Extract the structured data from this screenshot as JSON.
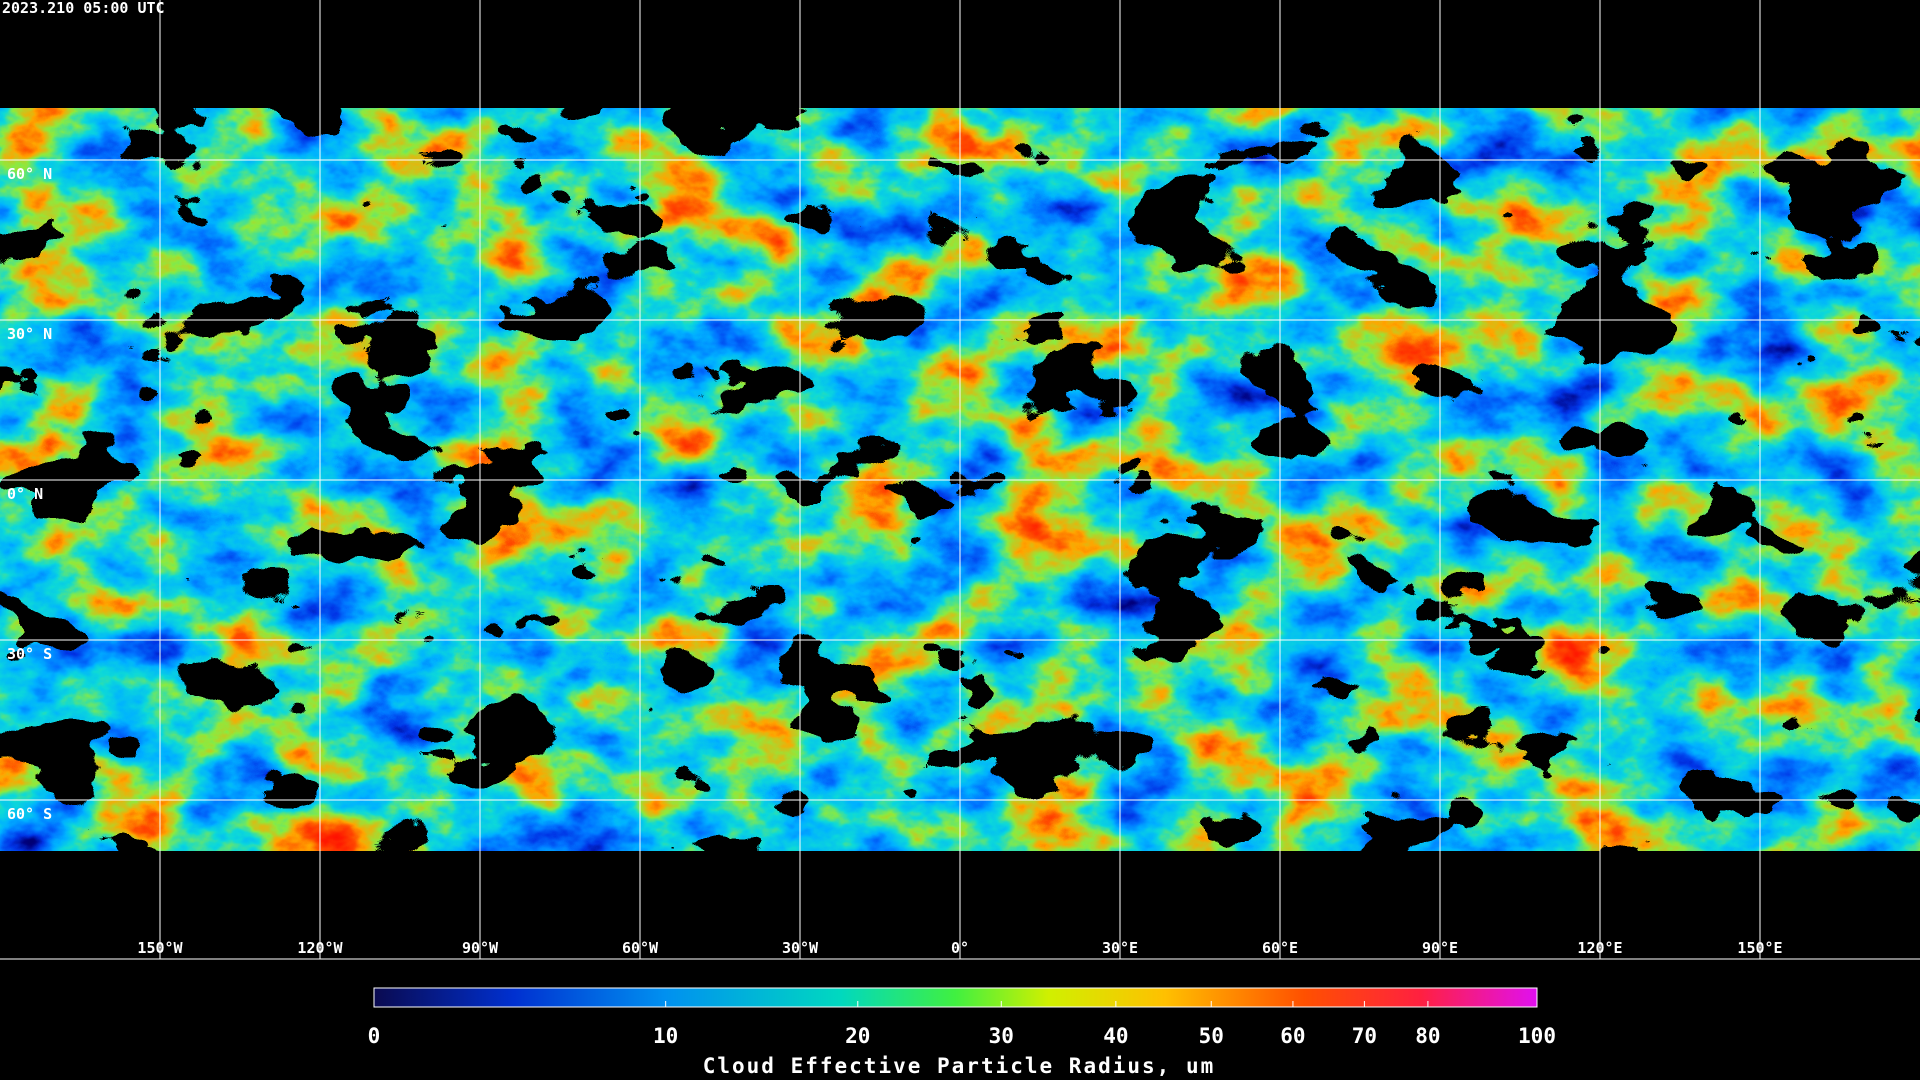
{
  "header": {
    "timestamp": "2023.210 05:00 UTC"
  },
  "map": {
    "lat_labels": [
      "60° N",
      "30° N",
      "0° N",
      "30° S",
      "60° S"
    ],
    "lon_labels": [
      "150°W",
      "120°W",
      "90°W",
      "60°W",
      "30°W",
      "0°",
      "30°E",
      "60°E",
      "90°E",
      "120°E",
      "150°E"
    ]
  },
  "colorbar": {
    "title": "Cloud Effective Particle Radius, um",
    "range": [
      0,
      100
    ],
    "ticks": [
      0,
      10,
      20,
      30,
      40,
      50,
      60,
      70,
      80,
      100
    ]
  }
}
